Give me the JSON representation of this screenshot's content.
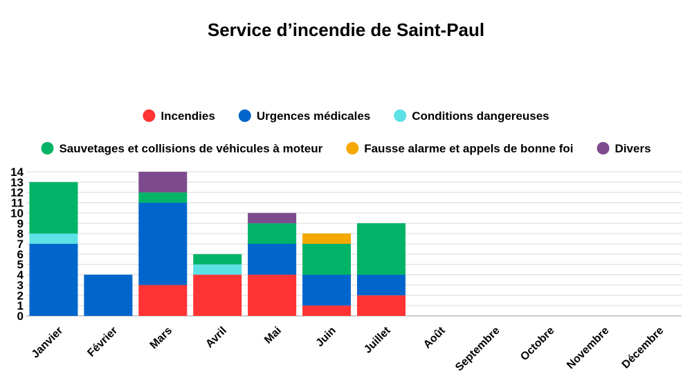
{
  "chart_data": {
    "type": "bar",
    "stacked": true,
    "title": "Service d’incendie de Saint-Paul",
    "xlabel": "",
    "ylabel": "",
    "ylim": [
      0,
      14
    ],
    "yticks": [
      "0",
      "1",
      "2",
      "3",
      "4",
      "5",
      "6",
      "7",
      "8",
      "9",
      "10",
      "11",
      "12",
      "13",
      "14"
    ],
    "grid": true,
    "legend_position": "top",
    "categories": [
      "Janvier",
      "Février",
      "Mars",
      "Avril",
      "Mai",
      "Juin",
      "Juillet",
      "Août",
      "Septembre",
      "Octobre",
      "Novembre",
      "Décembre"
    ],
    "series": [
      {
        "name": "Incendies",
        "color": "#ff3333",
        "values": [
          0,
          0,
          3,
          4,
          4,
          1,
          2,
          0,
          0,
          0,
          0,
          0
        ]
      },
      {
        "name": "Urgences médicales",
        "color": "#0066cc",
        "values": [
          7,
          4,
          8,
          0,
          3,
          3,
          2,
          0,
          0,
          0,
          0,
          0
        ]
      },
      {
        "name": "Conditions dangereuses",
        "color": "#5ce1e6",
        "values": [
          1,
          0,
          0,
          1,
          0,
          0,
          0,
          0,
          0,
          0,
          0,
          0
        ]
      },
      {
        "name": "Sauvetages et collisions de véhicules à moteur",
        "color": "#00b366",
        "values": [
          5,
          0,
          1,
          1,
          2,
          3,
          5,
          0,
          0,
          0,
          0,
          0
        ]
      },
      {
        "name": "Fausse alarme et appels de bonne foi",
        "color": "#f5a800",
        "values": [
          0,
          0,
          0,
          0,
          0,
          1,
          0,
          0,
          0,
          0,
          0,
          0
        ]
      },
      {
        "name": "Divers",
        "color": "#7e4a8e",
        "values": [
          0,
          0,
          2,
          0,
          1,
          0,
          0,
          0,
          0,
          0,
          0,
          0
        ]
      }
    ]
  }
}
